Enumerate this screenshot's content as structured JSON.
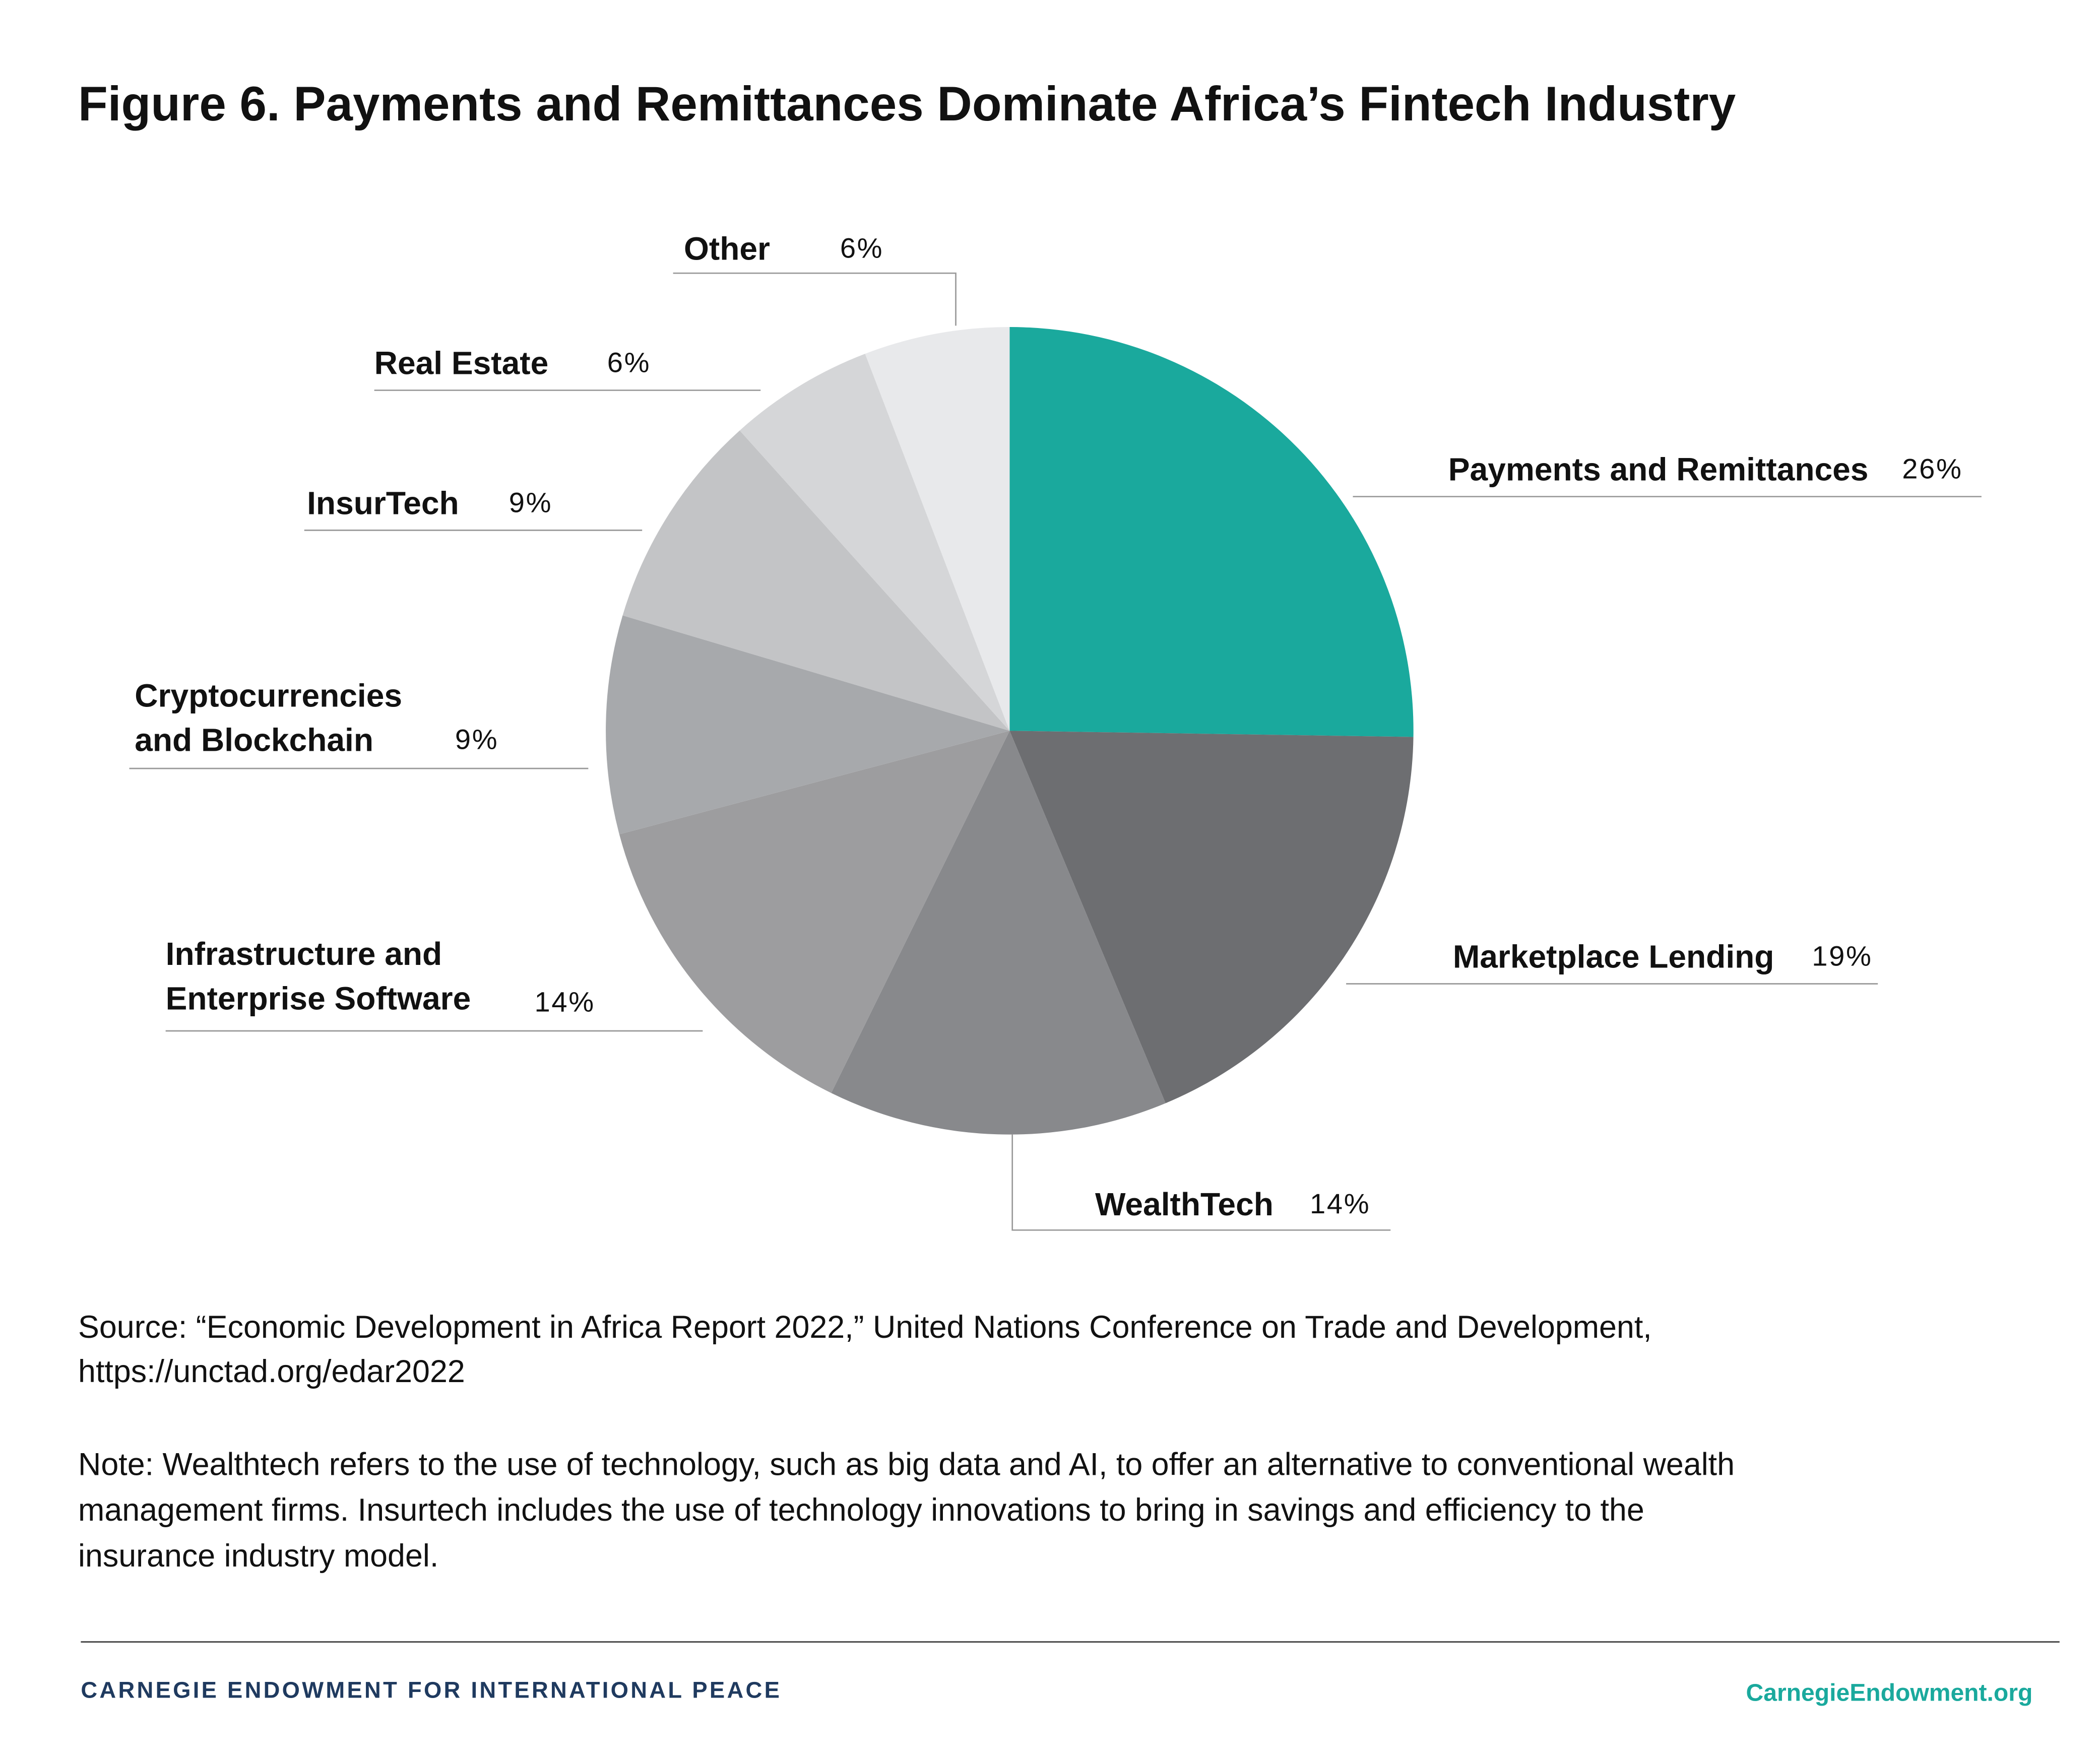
{
  "chart_data": {
    "type": "pie",
    "title": "Figure 6. Payments and Remittances Dominate Africa’s Fintech Industry",
    "categories": [
      "Payments and Remittances",
      "Marketplace Lending",
      "WealthTech",
      "Infrastructure and\nEnterprise Software",
      "Cryptocurrencies\nand Blockchain",
      "InsurTech",
      "Real Estate",
      "Other"
    ],
    "values": [
      26,
      19,
      14,
      14,
      9,
      9,
      6,
      6
    ],
    "value_labels": [
      "26%",
      "19%",
      "14%",
      "14%",
      "9%",
      "9%",
      "6%",
      "6%"
    ],
    "colors": [
      "#1aa99d",
      "#6d6e71",
      "#88898c",
      "#9d9d9f",
      "#a7a9ac",
      "#c3c4c6",
      "#d5d6d8",
      "#e8e9eb"
    ],
    "source": "Source:  “Economic Development in Africa Report 2022,” United Nations Conference on Trade and Development,\nhttps://unctad.org/edar2022",
    "note": "Note: Wealthtech refers to the use of technology, such as big data and AI, to offer an alternative to conventional wealth\nmanagement firms. Insurtech includes the use of technology innovations to bring in savings and efficiency to the\ninsurance industry model.",
    "footer_left": "CARNEGIE ENDOWMENT FOR INTERNATIONAL PEACE",
    "footer_right": "CarnegieEndowment.org"
  }
}
